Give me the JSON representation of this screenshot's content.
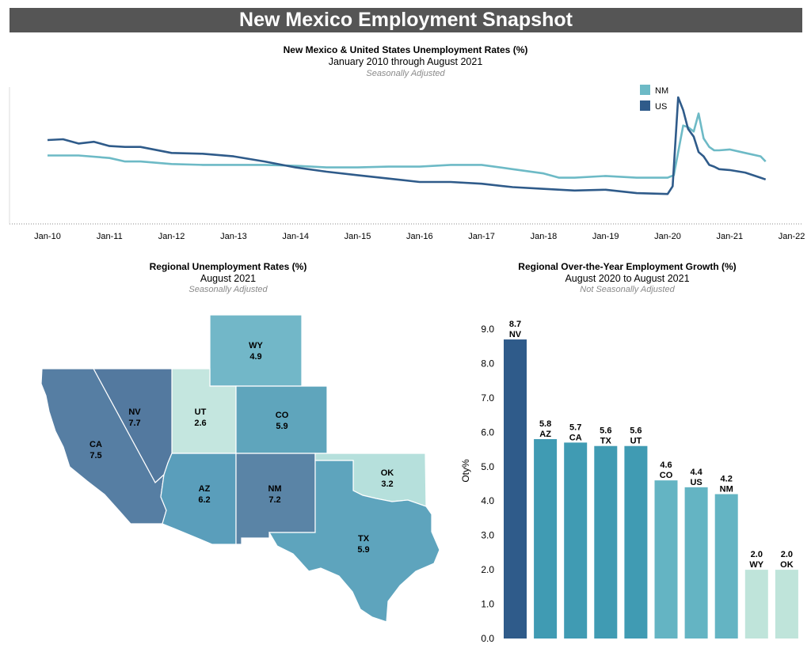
{
  "header": {
    "title": "New Mexico Employment Snapshot"
  },
  "colors": {
    "nm": "#6dbac6",
    "us": "#2f5b8a",
    "banner": "#555555"
  },
  "chart_data": [
    {
      "type": "line",
      "title": "New Mexico & United States Unemployment Rates (%)",
      "subtitle": "January 2010 through August 2021",
      "note": "Seasonally Adjusted",
      "xticks": [
        "Jan-10",
        "Jan-11",
        "Jan-12",
        "Jan-13",
        "Jan-14",
        "Jan-15",
        "Jan-16",
        "Jan-17",
        "Jan-18",
        "Jan-19",
        "Jan-20",
        "Jan-21",
        "Jan-22"
      ],
      "ylim": [
        0,
        16
      ],
      "legend": "top-right",
      "series": [
        {
          "name": "NM",
          "color": "#6dbac6",
          "x": [
            2010.0,
            2010.5,
            2011.0,
            2011.25,
            2011.5,
            2012.0,
            2012.5,
            2013.0,
            2013.5,
            2014.0,
            2014.5,
            2015.0,
            2015.5,
            2016.0,
            2016.5,
            2017.0,
            2017.5,
            2018.0,
            2018.25,
            2018.5,
            2019.0,
            2019.5,
            2020.0,
            2020.1,
            2020.25,
            2020.33,
            2020.42,
            2020.5,
            2020.58,
            2020.67,
            2020.75,
            2020.83,
            2021.0,
            2021.25,
            2021.5,
            2021.58
          ],
          "y": [
            8.0,
            8.0,
            7.7,
            7.3,
            7.3,
            7.0,
            6.9,
            6.9,
            6.9,
            6.8,
            6.6,
            6.6,
            6.7,
            6.7,
            6.9,
            6.9,
            6.4,
            5.9,
            5.4,
            5.4,
            5.6,
            5.4,
            5.4,
            5.7,
            11.5,
            11.3,
            10.8,
            12.9,
            10.0,
            9.0,
            8.6,
            8.6,
            8.7,
            8.3,
            7.9,
            7.3
          ]
        },
        {
          "name": "US",
          "color": "#2f5b8a",
          "x": [
            2010.0,
            2010.25,
            2010.5,
            2010.75,
            2011.0,
            2011.25,
            2011.5,
            2012.0,
            2012.5,
            2013.0,
            2013.5,
            2014.0,
            2014.5,
            2015.0,
            2015.5,
            2016.0,
            2016.5,
            2017.0,
            2017.5,
            2018.0,
            2018.5,
            2019.0,
            2019.5,
            2020.0,
            2020.08,
            2020.17,
            2020.25,
            2020.33,
            2020.42,
            2020.5,
            2020.58,
            2020.67,
            2020.75,
            2020.83,
            2021.0,
            2021.25,
            2021.5,
            2021.58
          ],
          "y": [
            9.8,
            9.9,
            9.4,
            9.6,
            9.1,
            9.0,
            9.0,
            8.3,
            8.2,
            7.9,
            7.3,
            6.6,
            6.1,
            5.7,
            5.3,
            4.9,
            4.9,
            4.7,
            4.3,
            4.1,
            3.9,
            4.0,
            3.6,
            3.5,
            4.4,
            14.8,
            13.3,
            11.1,
            10.2,
            8.4,
            7.9,
            6.9,
            6.7,
            6.4,
            6.3,
            6.0,
            5.4,
            5.2
          ]
        }
      ]
    },
    {
      "type": "bar",
      "title": "Regional Over-the-Year Employment Growth (%)",
      "subtitle": "August 2020 to August 2021",
      "note": "Not Seasonally Adjusted",
      "ylabel": "Oty%",
      "ylim": [
        0,
        9
      ],
      "yticks": [
        "0.0",
        "1.0",
        "2.0",
        "3.0",
        "4.0",
        "5.0",
        "6.0",
        "7.0",
        "8.0",
        "9.0"
      ],
      "categories": [
        "NV",
        "AZ",
        "CA",
        "TX",
        "UT",
        "CO",
        "US",
        "NM",
        "WY",
        "OK"
      ],
      "values": [
        8.7,
        5.8,
        5.7,
        5.6,
        5.6,
        4.6,
        4.4,
        4.2,
        2.0,
        2.0
      ],
      "value_labels": [
        "8.7",
        "5.8",
        "5.7",
        "5.6",
        "5.6",
        "4.6",
        "4.4",
        "4.2",
        "2.0",
        "2.0"
      ],
      "colors": [
        "#2f5b8a",
        "#409bb3",
        "#409bb3",
        "#409bb3",
        "#409bb3",
        "#64b4c3",
        "#64b4c3",
        "#64b4c3",
        "#bfe4da",
        "#bfe4da"
      ]
    }
  ],
  "map": {
    "title": "Regional Unemployment Rates (%)",
    "subtitle": "August 2021",
    "note": "Seasonally Adjusted",
    "states": [
      {
        "abbr": "WY",
        "rate": "4.9",
        "color": "#72b7c8"
      },
      {
        "abbr": "UT",
        "rate": "2.6",
        "color": "#c4e6df"
      },
      {
        "abbr": "CO",
        "rate": "5.9",
        "color": "#5fa5bc"
      },
      {
        "abbr": "NV",
        "rate": "7.7",
        "color": "#53799f"
      },
      {
        "abbr": "CA",
        "rate": "7.5",
        "color": "#567ea3"
      },
      {
        "abbr": "AZ",
        "rate": "6.2",
        "color": "#5a9ebb"
      },
      {
        "abbr": "NM",
        "rate": "7.2",
        "color": "#5a84a6"
      },
      {
        "abbr": "OK",
        "rate": "3.2",
        "color": "#b6e0dc"
      },
      {
        "abbr": "TX",
        "rate": "5.9",
        "color": "#5ea4bd"
      }
    ]
  }
}
